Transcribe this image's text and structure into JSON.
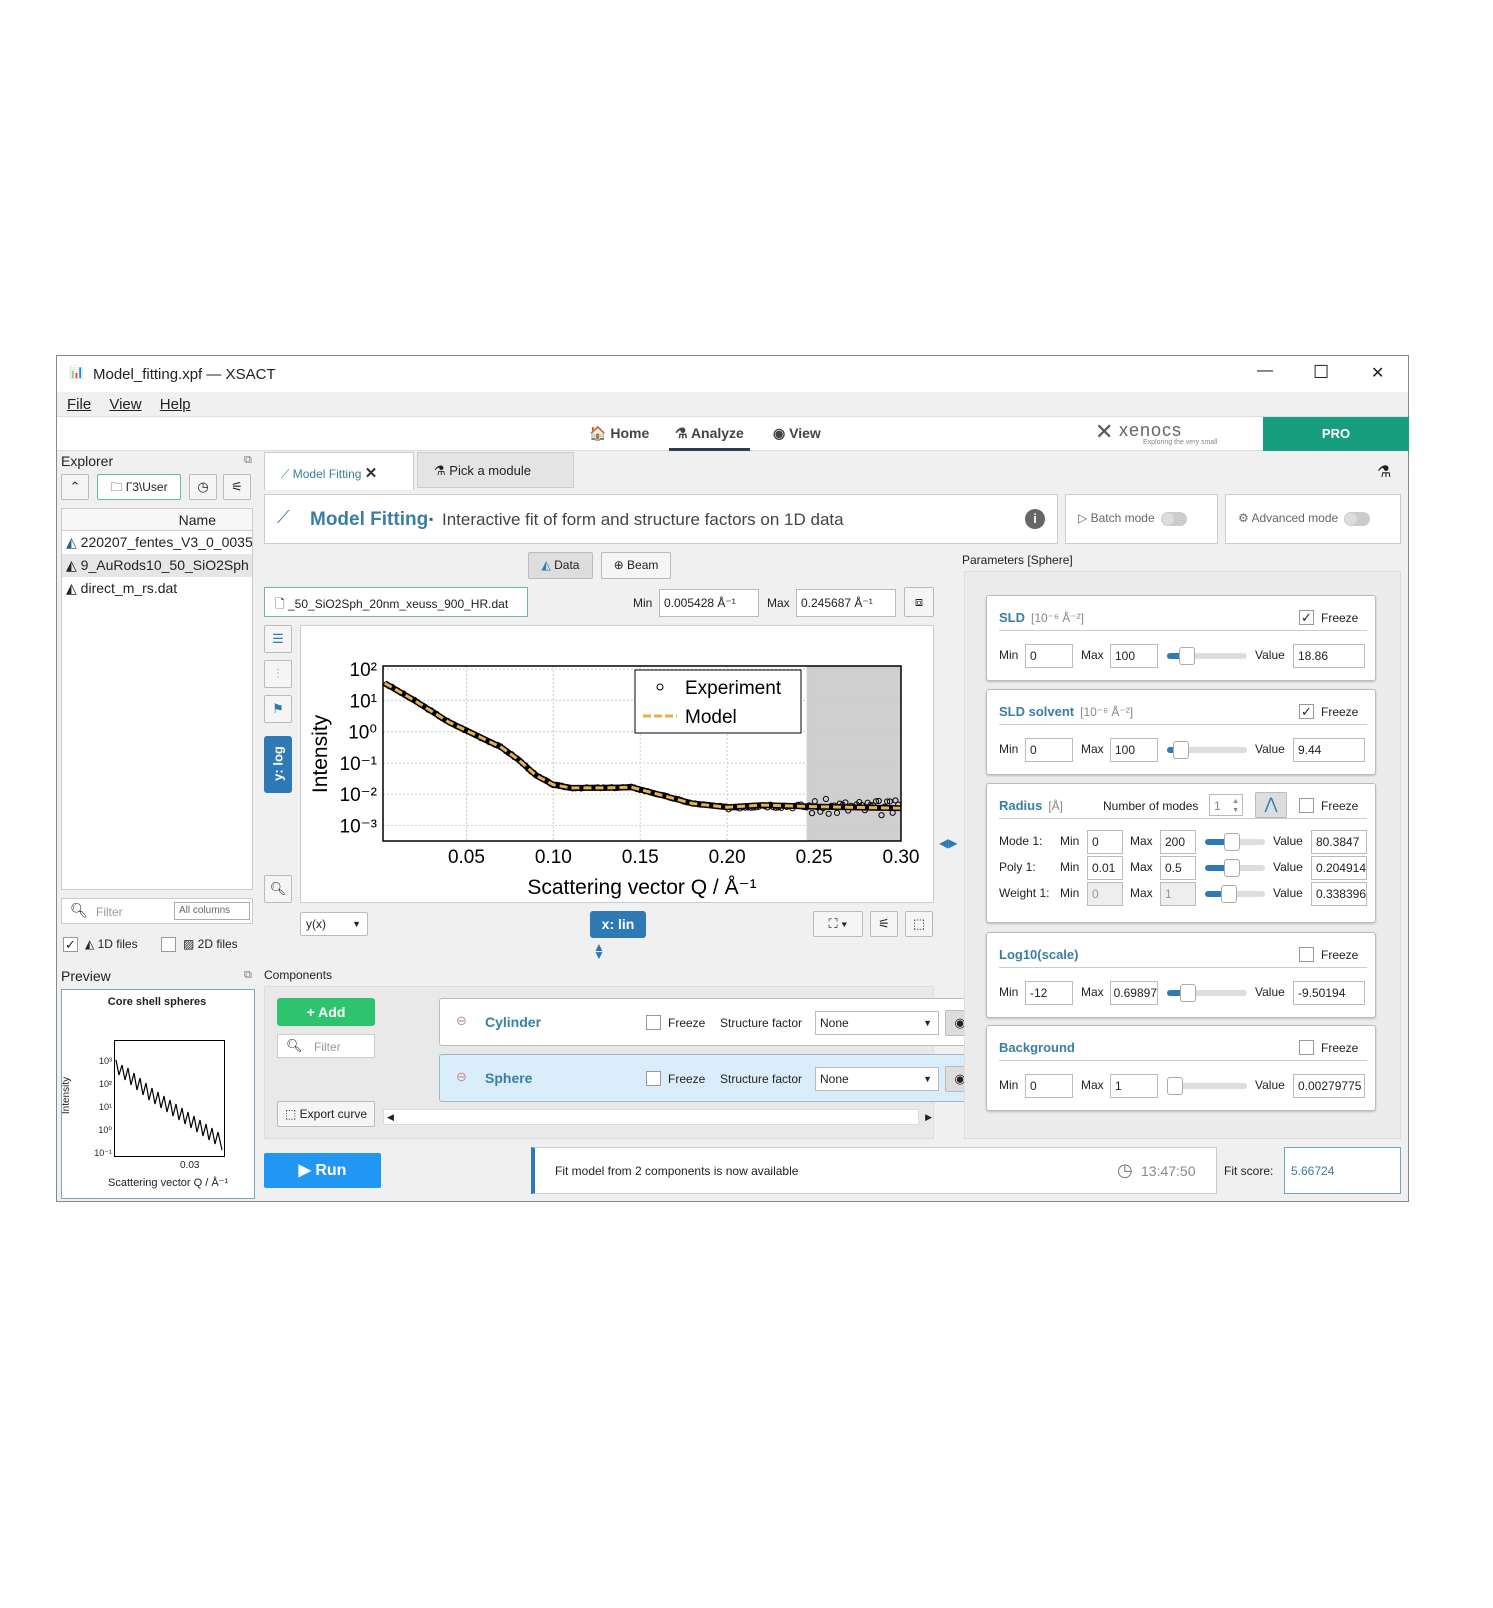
{
  "window": {
    "title": "Model_fitting.xpf — XSACT",
    "minimize": "—",
    "maximize": "☐",
    "close": "✕"
  },
  "menu": [
    "File",
    "View",
    "Help"
  ],
  "nav": {
    "home": "Home",
    "analyze": "Analyze",
    "view": "View",
    "brand": "xenocs",
    "brand_tagline": "Exploring the very small",
    "edition": "PRO",
    "accent": "#179e7e"
  },
  "explorer": {
    "title": "Explorer",
    "path": "Г3\\User",
    "column": "Name",
    "files": [
      "220207_fentes_V3_0_0035",
      "9_AuRods10_50_SiO2Sph",
      "direct_m_rs.dat"
    ],
    "filter_placeholder": "Filter",
    "filter_scope": "All columns",
    "file1d": "1D files",
    "file1d_checked": true,
    "file2d": "2D files",
    "file2d_checked": false
  },
  "preview": {
    "title": "Preview",
    "plot_title": "Core shell spheres",
    "ylabel": "Intensity",
    "xlabel": "Scattering vector Q / Å⁻¹",
    "xtick": "0.03",
    "yticks": [
      "10³",
      "10²",
      "10¹",
      "10⁰",
      "10⁻¹"
    ]
  },
  "tabs": [
    {
      "label": "Model Fitting",
      "active": true
    },
    {
      "label": "Pick a module"
    }
  ],
  "header": {
    "title": "Model Fitting",
    "separator": "▪",
    "subtitle": "Interactive fit of form and structure factors on 1D data",
    "batch": "Batch mode",
    "advanced": "Advanced mode"
  },
  "data_toolbar": {
    "data": "Data",
    "beam": "Beam",
    "file": "_50_SiO2Sph_20nm_xeuss_900_HR.dat",
    "min_label": "Min",
    "min": "0.005428 Å⁻¹",
    "max_label": "Max",
    "max": "0.245687 Å⁻¹",
    "yscale": "y: log",
    "xscale": "x: lin",
    "plot_mode": "y(x)"
  },
  "chart_data": {
    "type": "line",
    "xlabel": "Scattering vector Q / Å⁻¹",
    "ylabel": "Intensity",
    "xlim": [
      0.002,
      0.3
    ],
    "ylim_log10": [
      -3.5,
      2.1
    ],
    "yscale": "log",
    "xticks": [
      "0.05",
      "0.10",
      "0.15",
      "0.20",
      "0.25",
      "0.30"
    ],
    "yticks": [
      "10²",
      "10¹",
      "10⁰",
      "10⁻¹",
      "10⁻²",
      "10⁻³"
    ],
    "excluded_range": [
      0.2457,
      0.3
    ],
    "legend": {
      "placement": "top-right",
      "entries": [
        "Experiment",
        "Model"
      ]
    },
    "series": [
      {
        "name": "Model",
        "color": "#e8b04a",
        "x": [
          0.003,
          0.02,
          0.04,
          0.055,
          0.07,
          0.08,
          0.09,
          0.1,
          0.11,
          0.13,
          0.145,
          0.16,
          0.18,
          0.2,
          0.22,
          0.25,
          0.3
        ],
        "log10_y": [
          1.55,
          1.0,
          0.3,
          -0.1,
          -0.5,
          -0.9,
          -1.4,
          -1.7,
          -1.8,
          -1.8,
          -1.78,
          -2.0,
          -2.3,
          -2.42,
          -2.35,
          -2.4,
          -2.45
        ]
      }
    ]
  },
  "components": {
    "title": "Components",
    "add": "Add",
    "filter_placeholder": "Filter",
    "export": "Export curve",
    "items": [
      {
        "name": "Cylinder",
        "freeze": "Freeze",
        "sf_label": "Structure factor",
        "sf": "None",
        "selected": false
      },
      {
        "name": "Sphere",
        "freeze": "Freeze",
        "sf_label": "Structure factor",
        "sf": "None",
        "selected": true
      }
    ]
  },
  "params": {
    "title": "Parameters [Sphere]",
    "sld": {
      "name": "SLD",
      "unit": "[10⁻⁶ Å⁻²]",
      "freeze": "Freeze",
      "frozen": true,
      "min": "0",
      "max": "100",
      "value": "18.86",
      "slider": 0.19
    },
    "sld_solvent": {
      "name": "SLD solvent",
      "unit": "[10⁻⁶ Å⁻²]",
      "freeze": "Freeze",
      "frozen": true,
      "min": "0",
      "max": "100",
      "value": "9.44",
      "slider": 0.09
    },
    "radius": {
      "name": "Radius",
      "unit": "[Å]",
      "modes_label": "Number of modes",
      "modes": "1",
      "freeze": "Freeze",
      "frozen": false,
      "rows": [
        {
          "label": "Mode 1:",
          "min": "0",
          "max": "200",
          "value": "80.3847",
          "slider": 0.4
        },
        {
          "label": "Poly 1:",
          "min": "0.01",
          "max": "0.5",
          "value": "0.204914",
          "slider": 0.4
        },
        {
          "label": "Weight 1:",
          "min": "0",
          "max": "1",
          "value": "0.338396",
          "slider": 0.34
        }
      ]
    },
    "scale": {
      "name": "Log10(scale)",
      "freeze": "Freeze",
      "frozen": false,
      "min": "-12",
      "max": "0.69897",
      "value": "-9.50194",
      "slider": 0.2
    },
    "background": {
      "name": "Background",
      "freeze": "Freeze",
      "frozen": false,
      "min": "0",
      "max": "1",
      "value": "0.00279775",
      "slider": 0.0
    },
    "min_label": "Min",
    "max_label": "Max",
    "value_label": "Value"
  },
  "footer": {
    "run": "Run",
    "status": "Fit model from 2 components is now available",
    "time": "13:47:50",
    "fit_label": "Fit score:",
    "fit_score": "5.66724"
  }
}
